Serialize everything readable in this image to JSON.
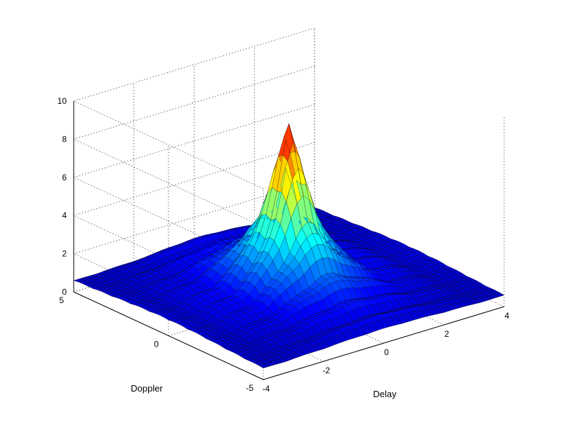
{
  "chart_data": {
    "type": "surface",
    "title": "",
    "xlabel": "Delay",
    "ylabel": "Doppler",
    "zlabel": "",
    "xlim": [
      -4,
      4
    ],
    "ylim": [
      -5,
      5
    ],
    "zlim": [
      0,
      10
    ],
    "x_ticks": [
      "-4",
      "-2",
      "0",
      "2",
      "4"
    ],
    "y_ticks": [
      "-5",
      "0",
      "5"
    ],
    "z_ticks": [
      "0",
      "2",
      "4",
      "6",
      "8",
      "10"
    ],
    "peak": {
      "x": 0,
      "y": 0,
      "z": 9.2
    },
    "colormap": "jet",
    "grid": true,
    "sample_rows": [
      {
        "y": 0,
        "x": [
          -4,
          -3,
          -2,
          -1,
          0,
          1,
          2,
          3,
          4
        ],
        "z": [
          0.7,
          0.6,
          0.8,
          2.6,
          9.2,
          2.6,
          0.8,
          0.6,
          0.7
        ]
      },
      {
        "y": -2.5,
        "x": [
          -4,
          -2,
          0,
          2,
          4
        ],
        "z": [
          0.6,
          1.4,
          3.8,
          1.4,
          0.6
        ]
      },
      {
        "y": 2.5,
        "x": [
          -4,
          -2,
          0,
          2,
          4
        ],
        "z": [
          0.6,
          1.4,
          3.8,
          1.4,
          0.6
        ]
      }
    ]
  }
}
